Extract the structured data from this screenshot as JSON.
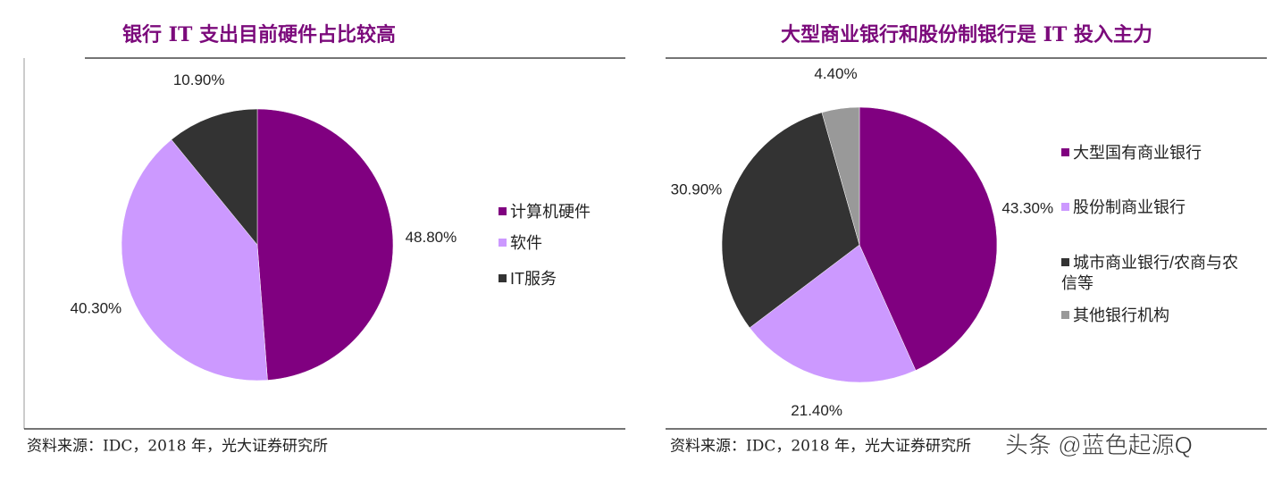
{
  "chart_data": [
    {
      "type": "pie",
      "title": "银行 IT 支出目前硬件占比较高",
      "categories": [
        "计算机硬件",
        "软件",
        "IT服务"
      ],
      "values": [
        48.8,
        40.3,
        10.9
      ],
      "value_labels": [
        "48.80%",
        "40.30%",
        "10.90%"
      ],
      "colors": [
        "#800080",
        "#cc99ff",
        "#333333"
      ],
      "source": "资料来源：IDC，2018 年，光大证券研究所"
    },
    {
      "type": "pie",
      "title": "大型商业银行和股份制银行是 IT 投入主力",
      "categories": [
        "大型国有商业银行",
        "股份制商业银行",
        "城市商业银行/农商与农信等",
        "其他银行机构"
      ],
      "values": [
        43.3,
        21.4,
        30.9,
        4.4
      ],
      "value_labels": [
        "43.30%",
        "21.40%",
        "30.90%",
        "4.40%"
      ],
      "colors": [
        "#800080",
        "#cc99ff",
        "#333333",
        "#999999"
      ],
      "source": "资料来源：IDC，2018 年，光大证券研究所"
    }
  ],
  "watermark": "头条 @蓝色起源Q"
}
